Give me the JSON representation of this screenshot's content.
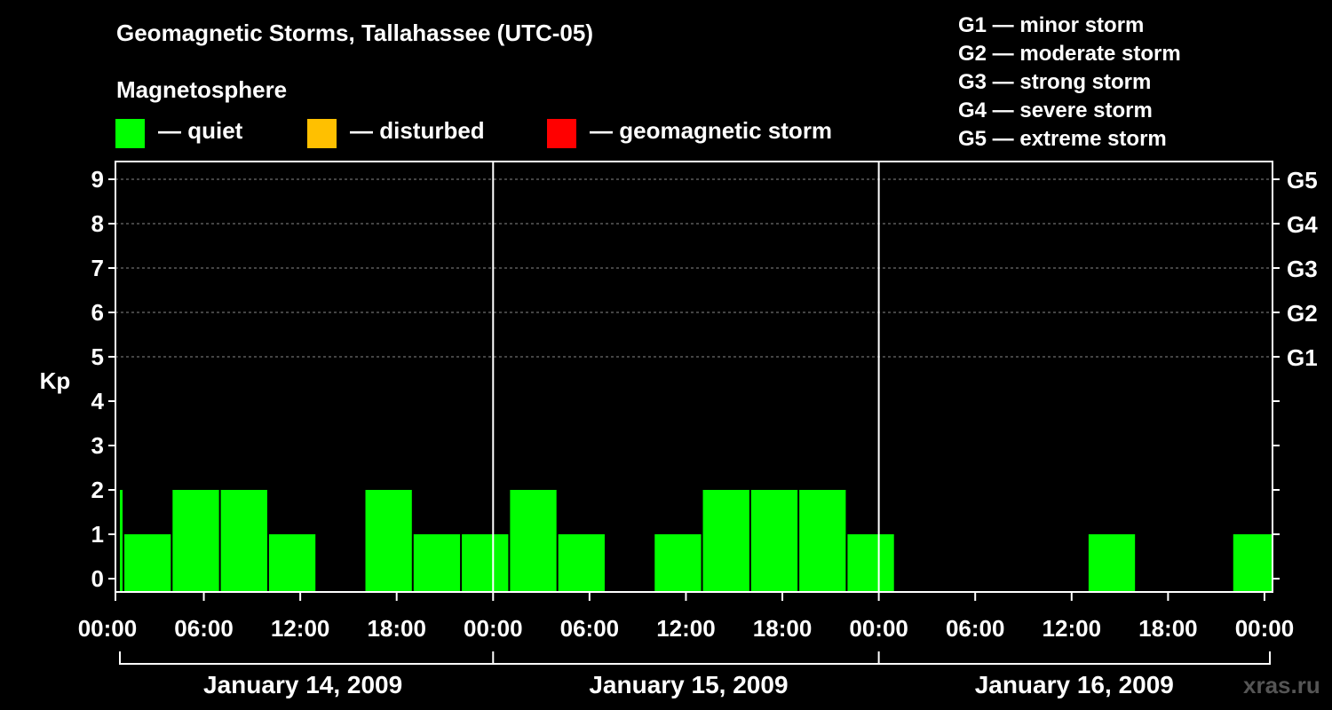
{
  "header": {
    "title": "Geomagnetic Storms, Tallahassee (UTC-05)",
    "magnetosphere_label": "Magnetosphere",
    "legend": [
      {
        "label": "— quiet",
        "color": "#00ff00"
      },
      {
        "label": "— disturbed",
        "color": "#ffc000"
      },
      {
        "label": "— geomagnetic storm",
        "color": "#ff0000"
      }
    ],
    "storm_levels": [
      "G1 — minor storm",
      "G2 — moderate storm",
      "G3 — strong storm",
      "G4 — severe storm",
      "G5 — extreme storm"
    ]
  },
  "watermark": "xras.ru",
  "chart_data": {
    "type": "bar",
    "ylabel": "Kp",
    "ylim": [
      0,
      9
    ],
    "yticks": [
      "0",
      "1",
      "2",
      "3",
      "4",
      "5",
      "6",
      "7",
      "8",
      "9"
    ],
    "right_ticks": [
      {
        "value": 5,
        "label": "G1"
      },
      {
        "value": 6,
        "label": "G2"
      },
      {
        "value": 7,
        "label": "G3"
      },
      {
        "value": 8,
        "label": "G4"
      },
      {
        "value": 9,
        "label": "G5"
      }
    ],
    "x_range_hours": [
      0.5,
      72.5
    ],
    "xticks": [
      "00:00",
      "06:00",
      "12:00",
      "18:00",
      "00:00",
      "06:00",
      "12:00",
      "18:00",
      "00:00",
      "06:00",
      "12:00",
      "18:00",
      "00:00"
    ],
    "days": [
      "January 14, 2009",
      "January 15, 2009",
      "January 16, 2009"
    ],
    "quiet_color": "#00ff00",
    "bars": [
      {
        "start": 0.5,
        "end": 1,
        "kp": 2
      },
      {
        "start": 1,
        "end": 4,
        "kp": 1
      },
      {
        "start": 4,
        "end": 7,
        "kp": 2
      },
      {
        "start": 7,
        "end": 10,
        "kp": 2
      },
      {
        "start": 10,
        "end": 13,
        "kp": 1
      },
      {
        "start": 13,
        "end": 16,
        "kp": 0
      },
      {
        "start": 16,
        "end": 19,
        "kp": 2
      },
      {
        "start": 19,
        "end": 22,
        "kp": 1
      },
      {
        "start": 22,
        "end": 25,
        "kp": 1
      },
      {
        "start": 25,
        "end": 28,
        "kp": 2
      },
      {
        "start": 28,
        "end": 31,
        "kp": 1
      },
      {
        "start": 31,
        "end": 34,
        "kp": 0
      },
      {
        "start": 34,
        "end": 37,
        "kp": 1
      },
      {
        "start": 37,
        "end": 40,
        "kp": 2
      },
      {
        "start": 40,
        "end": 43,
        "kp": 2
      },
      {
        "start": 43,
        "end": 46,
        "kp": 2
      },
      {
        "start": 46,
        "end": 49,
        "kp": 1
      },
      {
        "start": 49,
        "end": 52,
        "kp": 0
      },
      {
        "start": 52,
        "end": 55,
        "kp": 0
      },
      {
        "start": 55,
        "end": 58,
        "kp": 0
      },
      {
        "start": 58,
        "end": 61,
        "kp": 0
      },
      {
        "start": 61,
        "end": 64,
        "kp": 1
      },
      {
        "start": 64,
        "end": 67,
        "kp": 0
      },
      {
        "start": 67,
        "end": 70,
        "kp": 0
      },
      {
        "start": 70,
        "end": 72.5,
        "kp": 1
      }
    ]
  }
}
